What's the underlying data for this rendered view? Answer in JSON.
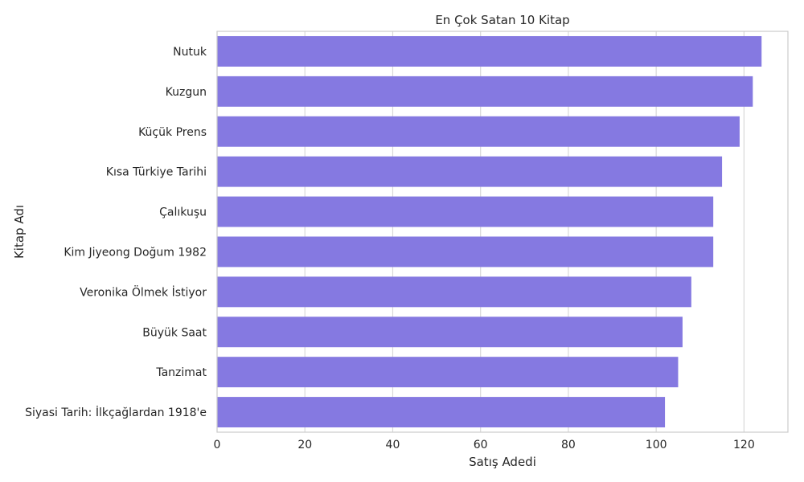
{
  "chart_data": {
    "type": "bar",
    "orientation": "horizontal",
    "title": "En Çok Satan 10 Kitap",
    "xlabel": "Satış Adedi",
    "ylabel": "Kitap Adı",
    "categories": [
      "Nutuk",
      "Kuzgun",
      "Küçük Prens",
      "Kısa Türkiye Tarihi",
      "Çalıkuşu",
      "Kim Jiyeong Doğum 1982",
      "Veronika Ölmek İstiyor",
      "Büyük Saat",
      "Tanzimat",
      "Siyasi Tarih: İlkçağlardan 1918'e"
    ],
    "values": [
      124,
      122,
      119,
      115,
      113,
      113,
      108,
      106,
      105,
      102
    ],
    "xlim": [
      0,
      130
    ],
    "xticks": [
      0,
      20,
      40,
      60,
      80,
      100,
      120
    ],
    "grid": "vertical",
    "colors": {
      "bar": "#8579e1",
      "grid": "#d9d9d9",
      "spine": "#cccccc",
      "text": "#262626"
    }
  }
}
